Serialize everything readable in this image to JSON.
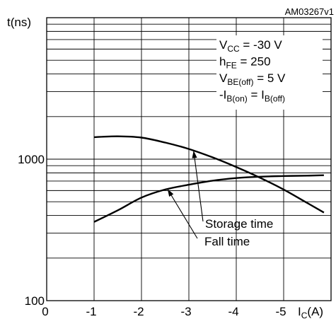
{
  "chart_data": {
    "type": "line",
    "figure_code": "AM03267v1",
    "ylabel": {
      "main": "t(ns)"
    },
    "xlabel": {
      "main": "I",
      "sub": "C",
      "suffix": "(A)"
    },
    "y_scale": "log",
    "ylim": [
      100,
      10000
    ],
    "xlim": [
      0,
      -6
    ],
    "y_tick_labels": [
      "1000",
      "100"
    ],
    "x_tick_labels": [
      "0",
      "-1",
      "-2",
      "-3",
      "-4",
      "-5"
    ],
    "grid": true,
    "conditions": [
      {
        "parts": [
          {
            "t": "V"
          },
          {
            "t": "CC",
            "sub": true
          },
          {
            "t": " = -30 V"
          }
        ]
      },
      {
        "parts": [
          {
            "t": "h"
          },
          {
            "t": "FE",
            "sub": true
          },
          {
            "t": " = 250"
          }
        ]
      },
      {
        "parts": [
          {
            "t": "V"
          },
          {
            "t": "BE(off)",
            "sub": true
          },
          {
            "t": " = 5 V"
          }
        ]
      },
      {
        "parts": [
          {
            "t": "-I"
          },
          {
            "t": "B(on)",
            "sub": true
          },
          {
            "t": " = I"
          },
          {
            "t": "B(off)",
            "sub": true
          }
        ]
      }
    ],
    "series": [
      {
        "name": "Storage time",
        "x": [
          -1,
          -1.5,
          -2,
          -2.5,
          -3,
          -3.5,
          -4,
          -4.5,
          -5,
          -5.5,
          -5.85
        ],
        "y": [
          1430,
          1450,
          1420,
          1310,
          1180,
          1030,
          880,
          740,
          610,
          490,
          420
        ]
      },
      {
        "name": "Fall time",
        "x": [
          -1,
          -1.5,
          -2,
          -2.5,
          -3,
          -3.5,
          -4,
          -4.5,
          -5,
          -5.5,
          -5.85
        ],
        "y": [
          360,
          435,
          535,
          610,
          660,
          705,
          735,
          752,
          760,
          765,
          770
        ]
      }
    ],
    "annotations": [
      {
        "text": "Storage time",
        "target_series": 0,
        "target_x": -3.1
      },
      {
        "text": "Fall time",
        "target_series": 1,
        "target_x": -2.55
      }
    ]
  }
}
